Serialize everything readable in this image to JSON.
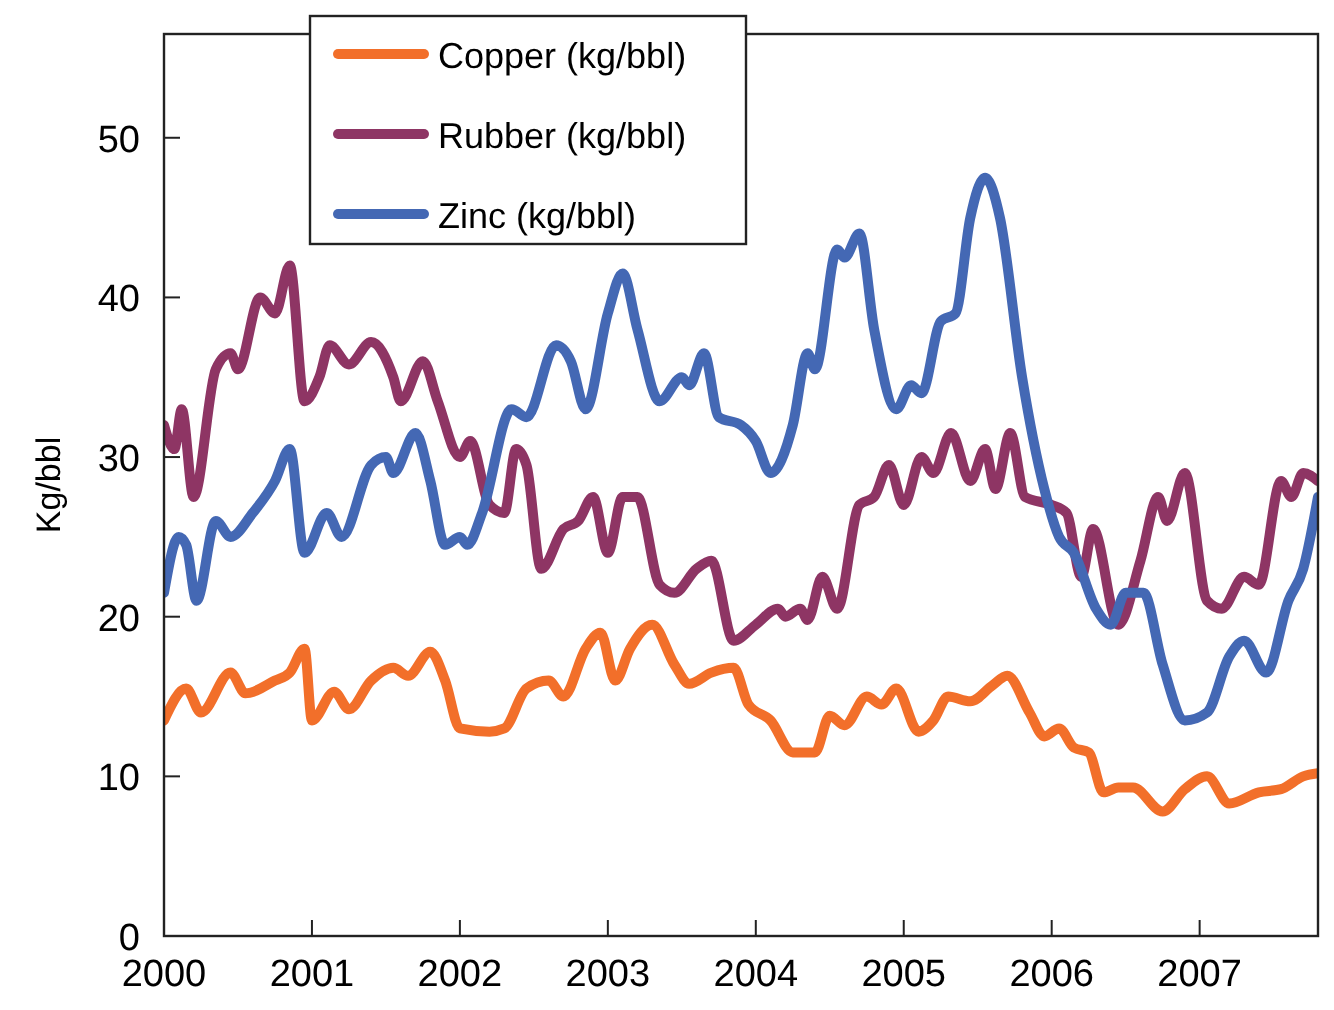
{
  "chart_data": {
    "type": "line",
    "ylabel": "Kg/bbl",
    "xlim": [
      2000,
      2007.8
    ],
    "xticks": [
      2000,
      2001,
      2002,
      2003,
      2004,
      2005,
      2006,
      2007
    ],
    "ylim": [
      0,
      56.5
    ],
    "yticks": [
      0,
      10,
      20,
      30,
      40,
      50
    ],
    "grid": false,
    "legend": "top",
    "marker": "none",
    "line_style": "solid",
    "series": [
      {
        "name": "Copper (kg/bbl)",
        "color": "#f26f2a",
        "x": [
          2000,
          2000.15,
          2000.25,
          2000.45,
          2000.55,
          2000.75,
          2000.85,
          2000.95,
          2001.0,
          2001.15,
          2001.25,
          2001.4,
          2001.55,
          2001.65,
          2001.8,
          2001.9,
          2002.0,
          2002.2,
          2002.3,
          2002.45,
          2002.6,
          2002.7,
          2002.85,
          2002.95,
          2003.05,
          2003.15,
          2003.3,
          2003.45,
          2003.55,
          2003.7,
          2003.85,
          2003.95,
          2004.1,
          2004.25,
          2004.4,
          2004.5,
          2004.6,
          2004.75,
          2004.85,
          2004.95,
          2005.1,
          2005.2,
          2005.3,
          2005.45,
          2005.6,
          2005.7,
          2005.85,
          2005.95,
          2006.05,
          2006.15,
          2006.25,
          2006.35,
          2006.45,
          2006.55,
          2006.75,
          2006.9,
          2007.05,
          2007.2,
          2007.4,
          2007.55,
          2007.7,
          2007.8
        ],
        "values": [
          13.5,
          15.5,
          14,
          16.5,
          15.2,
          16,
          16.5,
          18,
          13.5,
          15.3,
          14.2,
          16,
          16.8,
          16.3,
          17.8,
          16,
          13,
          12.8,
          13,
          15.5,
          16,
          15,
          18,
          19,
          16,
          18,
          19.5,
          17,
          15.8,
          16.5,
          16.8,
          14.5,
          13.5,
          11.5,
          11.5,
          13.8,
          13.2,
          15,
          14.5,
          15.5,
          12.8,
          13.5,
          15,
          14.7,
          15.7,
          16.3,
          14,
          12.5,
          13,
          11.8,
          11.5,
          9,
          9.3,
          9.3,
          7.8,
          9.2,
          10,
          8.3,
          9,
          9.2,
          10,
          10.2
        ]
      },
      {
        "name": "Rubber (kg/bbl)",
        "color": "#8e3564",
        "x": [
          2000,
          2000.07,
          2000.12,
          2000.2,
          2000.35,
          2000.45,
          2000.5,
          2000.65,
          2000.75,
          2000.85,
          2000.95,
          2001.05,
          2001.12,
          2001.25,
          2001.4,
          2001.55,
          2001.6,
          2001.75,
          2001.85,
          2002.0,
          2002.07,
          2002.2,
          2002.3,
          2002.38,
          2002.45,
          2002.55,
          2002.7,
          2002.8,
          2002.9,
          2003.0,
          2003.1,
          2003.2,
          2003.35,
          2003.45,
          2003.6,
          2003.7,
          2003.85,
          2004.0,
          2004.15,
          2004.2,
          2004.3,
          2004.35,
          2004.45,
          2004.55,
          2004.7,
          2004.8,
          2004.9,
          2005.0,
          2005.12,
          2005.2,
          2005.32,
          2005.45,
          2005.55,
          2005.62,
          2005.72,
          2005.82,
          2006.0,
          2006.1,
          2006.2,
          2006.28,
          2006.45,
          2006.6,
          2006.72,
          2006.78,
          2006.9,
          2007.05,
          2007.15,
          2007.3,
          2007.4,
          2007.55,
          2007.62,
          2007.7,
          2007.8
        ],
        "values": [
          32,
          30.5,
          33,
          27.5,
          35.5,
          36.5,
          35.5,
          40,
          39,
          42,
          33.5,
          35,
          37,
          35.8,
          37.2,
          35,
          33.5,
          36,
          33.5,
          30,
          31,
          27,
          26.5,
          30.5,
          29.5,
          23,
          25.5,
          26,
          27.5,
          24,
          27.5,
          27.5,
          22,
          21.5,
          23,
          23.5,
          18.5,
          19.5,
          20.5,
          20,
          20.5,
          19.8,
          22.5,
          20.5,
          27,
          27.5,
          29.5,
          27,
          30,
          29,
          31.5,
          28.5,
          30.5,
          28,
          31.5,
          27.5,
          27,
          26.5,
          22.5,
          25.5,
          19.5,
          23.5,
          27.5,
          26,
          29,
          21,
          20.5,
          22.5,
          22,
          28.5,
          27.5,
          29,
          28.5
        ]
      },
      {
        "name": "Zinc (kg/bbl)",
        "color": "#4468b4",
        "x": [
          2000,
          2000.1,
          2000.15,
          2000.22,
          2000.35,
          2000.45,
          2000.6,
          2000.75,
          2000.85,
          2000.95,
          2001.1,
          2001.2,
          2001.4,
          2001.5,
          2001.55,
          2001.7,
          2001.8,
          2001.9,
          2002.0,
          2002.05,
          2002.15,
          2002.35,
          2002.45,
          2002.65,
          2002.75,
          2002.85,
          2003.0,
          2003.1,
          2003.2,
          2003.35,
          2003.5,
          2003.55,
          2003.65,
          2003.75,
          2003.9,
          2004.0,
          2004.1,
          2004.25,
          2004.35,
          2004.4,
          2004.55,
          2004.6,
          2004.7,
          2004.8,
          2004.95,
          2005.05,
          2005.12,
          2005.25,
          2005.35,
          2005.45,
          2005.55,
          2005.65,
          2005.8,
          2005.95,
          2006.05,
          2006.15,
          2006.3,
          2006.4,
          2006.5,
          2006.62,
          2006.75,
          2006.9,
          2007.05,
          2007.2,
          2007.3,
          2007.45,
          2007.6,
          2007.7,
          2007.8
        ],
        "values": [
          21.5,
          25,
          24.5,
          21,
          26,
          25,
          26.5,
          28.5,
          30.5,
          24,
          26.5,
          25,
          29.5,
          30,
          29,
          31.5,
          28.5,
          24.5,
          25,
          24.5,
          26.5,
          33,
          32.5,
          37,
          36,
          33,
          39,
          41.5,
          38,
          33.5,
          35,
          34.5,
          36.5,
          32.5,
          32,
          31,
          29,
          32,
          36.5,
          35.5,
          43,
          42.5,
          44,
          38,
          33,
          34.5,
          34,
          38.5,
          39,
          45,
          47.5,
          45,
          35,
          28,
          25,
          24,
          20.5,
          19.5,
          21.5,
          21.5,
          17,
          13.5,
          14,
          17.5,
          18.5,
          16.5,
          21,
          23,
          27.5
        ]
      }
    ]
  }
}
